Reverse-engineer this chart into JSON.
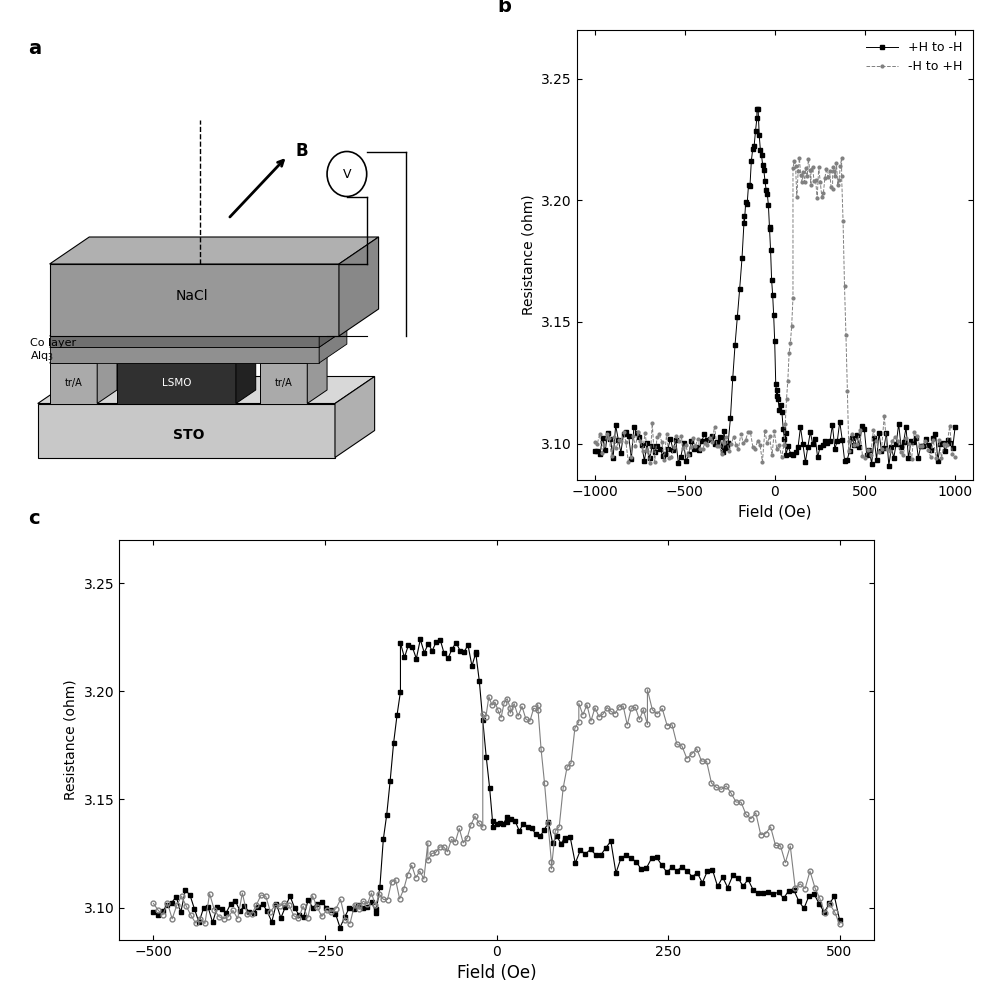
{
  "panel_b": {
    "xlabel": "Field (Oe)",
    "ylabel": "Resistance (ohm)",
    "xlim": [
      -1100,
      1100
    ],
    "ylim": [
      3.085,
      3.27
    ],
    "yticks": [
      3.1,
      3.15,
      3.2,
      3.25
    ],
    "xticks": [
      -1000,
      -500,
      0,
      500,
      1000
    ],
    "legend1": "+H to -H",
    "legend2": "-H to +H"
  },
  "panel_c": {
    "xlabel": "Field (Oe)",
    "ylabel": "Resistance (ohm)",
    "xlim": [
      -550,
      550
    ],
    "ylim": [
      3.085,
      3.27
    ],
    "yticks": [
      3.1,
      3.15,
      3.2,
      3.25
    ],
    "xticks": [
      -500,
      -250,
      0,
      250,
      500
    ]
  },
  "bg_color": "#ffffff"
}
